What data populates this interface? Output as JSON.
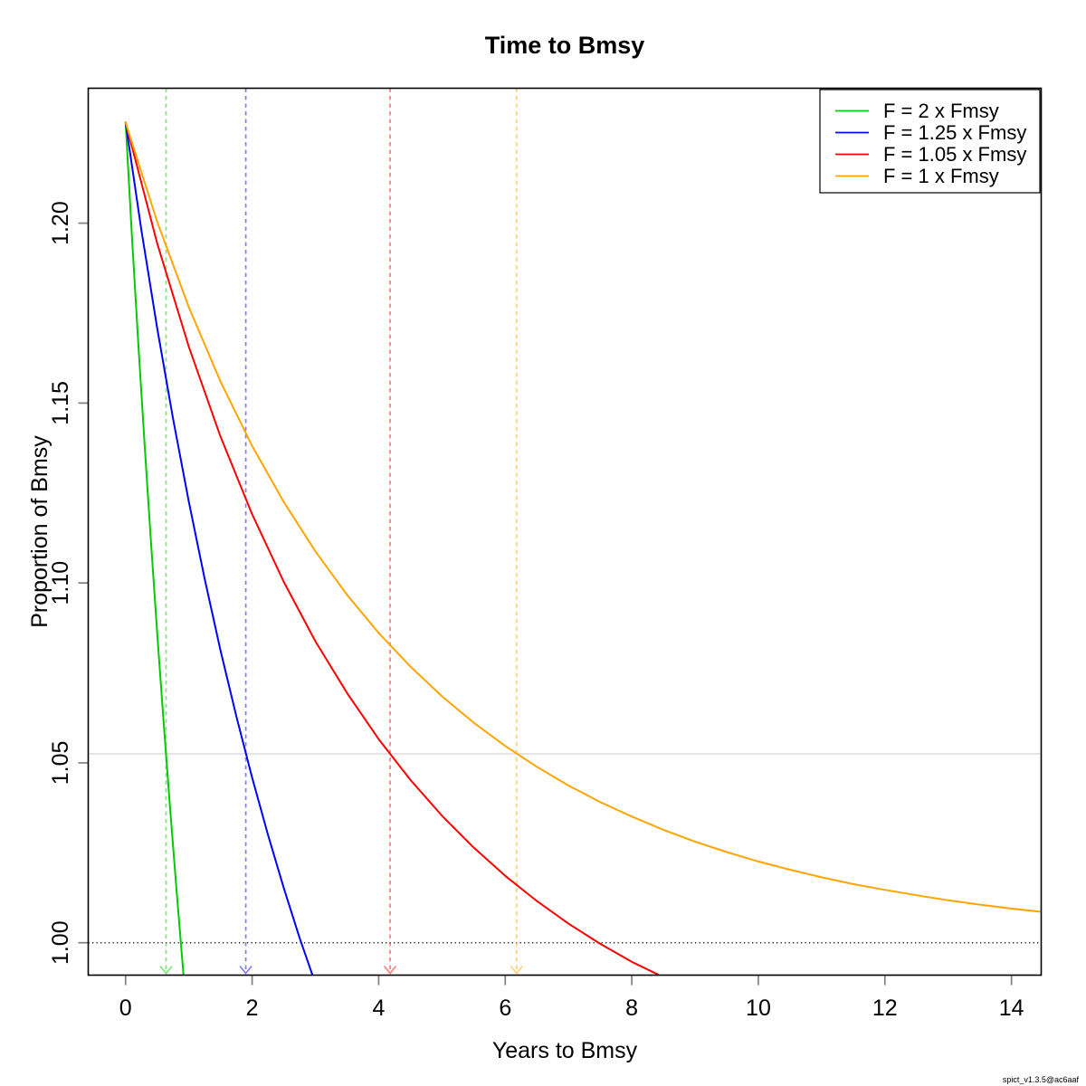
{
  "figure": {
    "title": "Time to Bmsy",
    "x_axis_label": "Years to Bmsy",
    "y_axis_label": "Proportion of Bmsy",
    "watermark": "spict_v1.3.5@ac6aaf"
  },
  "chart_data": {
    "type": "line",
    "title": "Time to Bmsy",
    "xlabel": "Years to Bmsy",
    "ylabel": "Proportion of Bmsy",
    "xlim": [
      -0.59,
      14.47
    ],
    "ylim": [
      0.991,
      1.2375
    ],
    "xticks": [
      0,
      2,
      4,
      6,
      8,
      10,
      12,
      14
    ],
    "yticks": [
      1.0,
      1.05,
      1.1,
      1.15,
      1.2
    ],
    "ytick_labels": [
      "1.00",
      "1.05",
      "1.10",
      "1.15",
      "1.20"
    ],
    "grid": false,
    "legend_position": "top-right",
    "initial_proportion": 1.228,
    "reference_lines": [
      {
        "name": "bmsy-level",
        "y": 1.0,
        "style": "dotted",
        "color": "#000000"
      },
      {
        "name": "arrow-threshold",
        "y": 1.0525,
        "style": "solid",
        "color": "#d4d4d4"
      }
    ],
    "series": [
      {
        "name": "F = 2 x Fmsy",
        "f_multiplier": 2,
        "color": "#00CC00",
        "time_to_bmsy_years": 0.64,
        "x": [
          0,
          0.1,
          0.2,
          0.3,
          0.4,
          0.5,
          0.6,
          0.7,
          0.8,
          0.9,
          0.915
        ],
        "y": [
          1.228,
          1.1967,
          1.167,
          1.1388,
          1.1118,
          1.0861,
          1.0616,
          1.0382,
          1.0158,
          0.9943,
          0.9912
        ]
      },
      {
        "name": "F = 1.25 x Fmsy",
        "f_multiplier": 1.25,
        "color": "#0000FF",
        "time_to_bmsy_years": 1.9,
        "x": [
          0,
          0.25,
          0.5,
          0.75,
          1,
          1.25,
          1.5,
          1.75,
          2,
          2.25,
          2.5,
          2.75,
          2.95
        ],
        "y": [
          1.228,
          1.1981,
          1.1708,
          1.1457,
          1.1225,
          1.1011,
          1.0813,
          1.063,
          1.0459,
          1.03,
          1.0152,
          1.0014,
          0.9912
        ]
      },
      {
        "name": "F = 1.05 x Fmsy",
        "f_multiplier": 1.05,
        "color": "#FF0000",
        "time_to_bmsy_years": 4.18,
        "x": [
          0,
          0.5,
          1,
          1.5,
          2,
          2.5,
          3,
          3.5,
          4,
          4.5,
          5,
          5.5,
          6,
          6.5,
          7,
          7.5,
          8,
          8.41
        ],
        "y": [
          1.228,
          1.1944,
          1.1656,
          1.1407,
          1.1191,
          1.1003,
          1.0838,
          1.0694,
          1.0566,
          1.0453,
          1.0353,
          1.0265,
          1.0186,
          1.0116,
          1.0053,
          0.9997,
          0.9947,
          0.9912
        ]
      },
      {
        "name": "F = 1 x Fmsy",
        "f_multiplier": 1,
        "color": "#FFA500",
        "time_to_bmsy_years": 6.18,
        "x": [
          0,
          0.5,
          1,
          1.5,
          2,
          2.5,
          3,
          3.5,
          4,
          4.5,
          5,
          5.5,
          6,
          6.5,
          7,
          7.5,
          8,
          8.5,
          9,
          9.5,
          10,
          10.5,
          11,
          11.5,
          12,
          12.5,
          13,
          13.5,
          14,
          14.47
        ],
        "y": [
          1.228,
          1.2004,
          1.1766,
          1.156,
          1.1381,
          1.1225,
          1.1088,
          1.0967,
          1.0861,
          1.0768,
          1.0685,
          1.0612,
          1.0547,
          1.0489,
          1.0437,
          1.0391,
          1.0351,
          1.0314,
          1.0281,
          1.0252,
          1.0226,
          1.0203,
          1.0182,
          1.0163,
          1.0147,
          1.0132,
          1.0118,
          1.0106,
          1.0095,
          1.0086
        ]
      }
    ]
  }
}
